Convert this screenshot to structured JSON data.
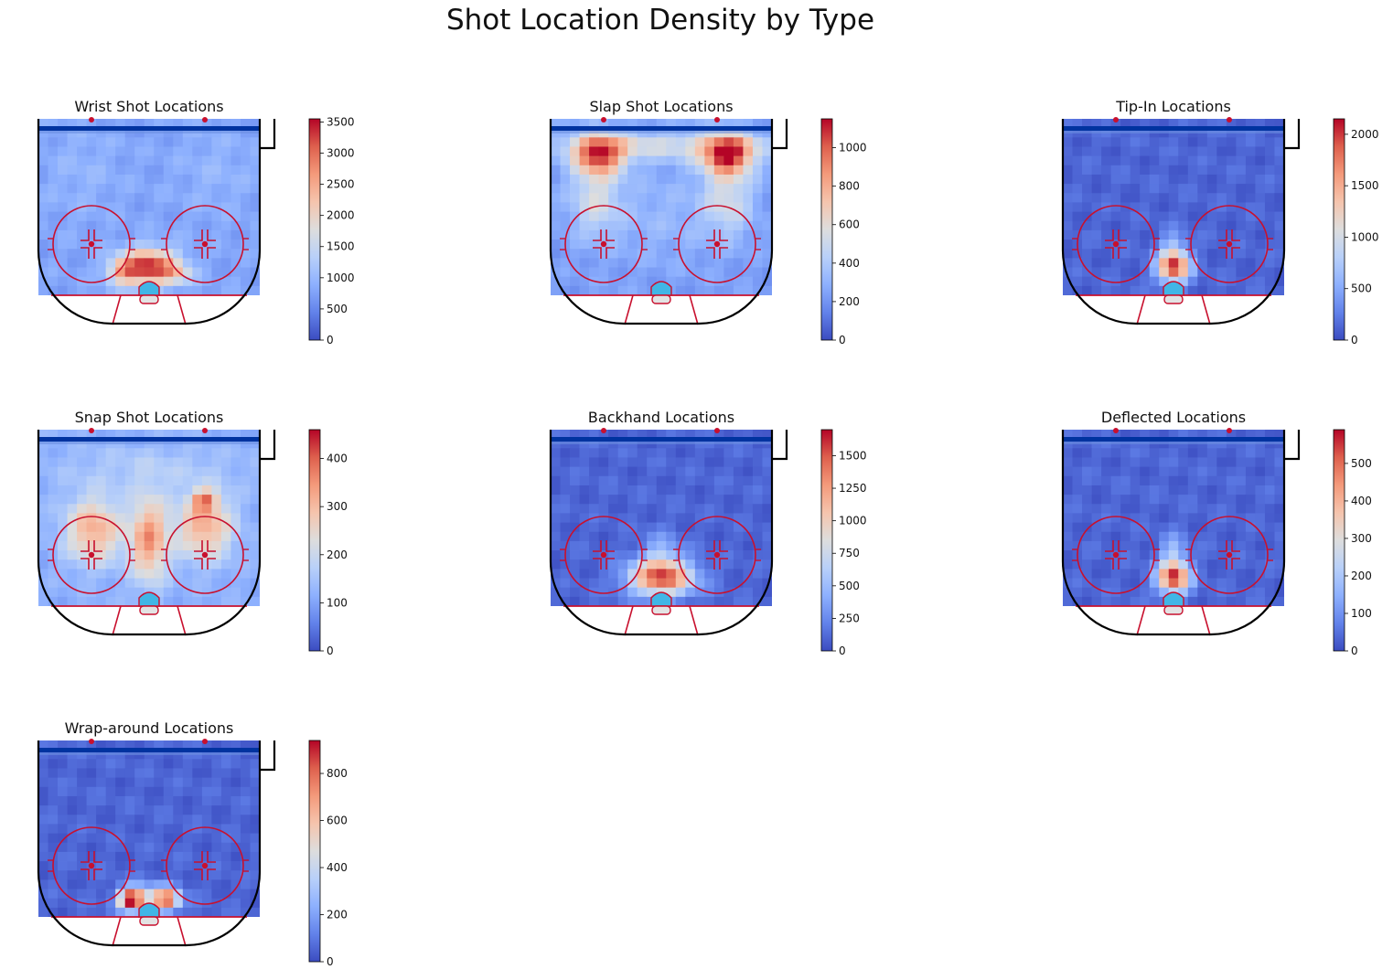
{
  "figure": {
    "title": "Shot Location Density by Type"
  },
  "style": {
    "rink_line": "#000000",
    "red_line": "#c8102e",
    "blue_line": "#0033a0",
    "crease_fill": "#41b6e6",
    "cmap": "coolwarm"
  },
  "chart_data": [
    {
      "type": "heatmap",
      "title": "Wrist Shot Locations",
      "colorbar": {
        "min": 0,
        "max": 3550,
        "ticks": [
          "0",
          "500",
          "1000",
          "1500",
          "2000",
          "2500",
          "3000",
          "3500"
        ]
      },
      "base_level": 0.22,
      "hotspots": [
        {
          "x": 0.5,
          "y": 0.84,
          "sx": 0.09,
          "sy": 0.07,
          "w": 0.75
        },
        {
          "x": 0.38,
          "y": 0.87,
          "sx": 0.05,
          "sy": 0.05,
          "w": 0.3
        },
        {
          "x": 0.63,
          "y": 0.88,
          "sx": 0.05,
          "sy": 0.04,
          "w": 0.2
        },
        {
          "x": 0.2,
          "y": 0.3,
          "sx": 0.12,
          "sy": 0.2,
          "w": 0.05
        },
        {
          "x": 0.8,
          "y": 0.3,
          "sx": 0.12,
          "sy": 0.2,
          "w": 0.05
        }
      ]
    },
    {
      "type": "heatmap",
      "title": "Slap Shot Locations",
      "colorbar": {
        "min": 0,
        "max": 1150,
        "ticks": [
          "0",
          "200",
          "400",
          "600",
          "800",
          "1000"
        ]
      },
      "base_level": 0.2,
      "hotspots": [
        {
          "x": 0.22,
          "y": 0.2,
          "sx": 0.08,
          "sy": 0.08,
          "w": 0.65
        },
        {
          "x": 0.8,
          "y": 0.2,
          "sx": 0.08,
          "sy": 0.08,
          "w": 0.72
        },
        {
          "x": 0.5,
          "y": 0.15,
          "sx": 0.35,
          "sy": 0.06,
          "w": 0.25
        },
        {
          "x": 0.2,
          "y": 0.45,
          "sx": 0.08,
          "sy": 0.15,
          "w": 0.25
        },
        {
          "x": 0.8,
          "y": 0.45,
          "sx": 0.08,
          "sy": 0.15,
          "w": 0.25
        },
        {
          "x": 0.5,
          "y": 0.55,
          "sx": 0.2,
          "sy": 0.2,
          "w": 0.08
        }
      ]
    },
    {
      "type": "heatmap",
      "title": "Tip-In Locations",
      "colorbar": {
        "min": 0,
        "max": 2150,
        "ticks": [
          "0",
          "500",
          "1000",
          "1500",
          "2000"
        ]
      },
      "base_level": 0.06,
      "hotspots": [
        {
          "x": 0.5,
          "y": 0.84,
          "sx": 0.05,
          "sy": 0.06,
          "w": 0.9
        },
        {
          "x": 0.5,
          "y": 0.72,
          "sx": 0.04,
          "sy": 0.06,
          "w": 0.2
        }
      ]
    },
    {
      "type": "heatmap",
      "title": "Snap Shot Locations",
      "colorbar": {
        "min": 0,
        "max": 460,
        "ticks": [
          "0",
          "100",
          "200",
          "300",
          "400"
        ]
      },
      "base_level": 0.25,
      "hotspots": [
        {
          "x": 0.25,
          "y": 0.57,
          "sx": 0.09,
          "sy": 0.13,
          "w": 0.45
        },
        {
          "x": 0.75,
          "y": 0.55,
          "sx": 0.09,
          "sy": 0.13,
          "w": 0.45
        },
        {
          "x": 0.5,
          "y": 0.62,
          "sx": 0.06,
          "sy": 0.17,
          "w": 0.5
        },
        {
          "x": 0.75,
          "y": 0.4,
          "sx": 0.04,
          "sy": 0.04,
          "w": 0.4
        },
        {
          "x": 0.5,
          "y": 0.22,
          "sx": 0.3,
          "sy": 0.1,
          "w": 0.1
        }
      ]
    },
    {
      "type": "heatmap",
      "title": "Backhand Locations",
      "colorbar": {
        "min": 0,
        "max": 1700,
        "ticks": [
          "0",
          "250",
          "500",
          "750",
          "1000",
          "1250",
          "1500"
        ]
      },
      "base_level": 0.06,
      "hotspots": [
        {
          "x": 0.5,
          "y": 0.84,
          "sx": 0.1,
          "sy": 0.07,
          "w": 0.85
        },
        {
          "x": 0.5,
          "y": 0.7,
          "sx": 0.06,
          "sy": 0.08,
          "w": 0.2
        }
      ]
    },
    {
      "type": "heatmap",
      "title": "Deflected Locations",
      "colorbar": {
        "min": 0,
        "max": 590,
        "ticks": [
          "0",
          "100",
          "200",
          "300",
          "400",
          "500"
        ]
      },
      "base_level": 0.06,
      "hotspots": [
        {
          "x": 0.5,
          "y": 0.84,
          "sx": 0.05,
          "sy": 0.06,
          "w": 0.9
        },
        {
          "x": 0.5,
          "y": 0.7,
          "sx": 0.04,
          "sy": 0.07,
          "w": 0.25
        }
      ]
    },
    {
      "type": "heatmap",
      "title": "Wrap-around Locations",
      "colorbar": {
        "min": 0,
        "max": 940,
        "ticks": [
          "0",
          "200",
          "400",
          "600",
          "800"
        ]
      },
      "base_level": 0.06,
      "hotspots": [
        {
          "x": 0.42,
          "y": 0.9,
          "sx": 0.04,
          "sy": 0.04,
          "w": 0.9
        },
        {
          "x": 0.58,
          "y": 0.9,
          "sx": 0.04,
          "sy": 0.04,
          "w": 0.7
        },
        {
          "x": 0.5,
          "y": 0.9,
          "sx": 0.08,
          "sy": 0.06,
          "w": 0.3
        }
      ]
    }
  ]
}
